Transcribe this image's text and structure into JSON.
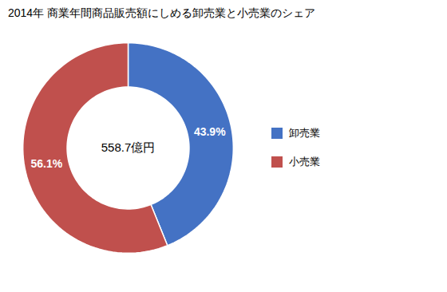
{
  "chart_data": {
    "type": "donut",
    "title": "2014年 商業年間商品販売額にしめる卸売業と小売業のシェア",
    "categories": [
      "卸売業",
      "小売業"
    ],
    "values": [
      43.9,
      56.1
    ],
    "value_labels": [
      "43.9%",
      "56.1%"
    ],
    "colors": [
      "#4472C4",
      "#C0504D"
    ],
    "data_labels": true,
    "legend": "right",
    "annotations": [
      "558.7億円"
    ]
  }
}
